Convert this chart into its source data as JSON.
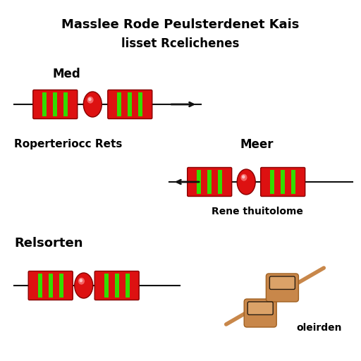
{
  "title_line1": "Masslee Rode Peulsterdenet Kais",
  "title_line2": "lisset Rcelichenes",
  "label_med": "Med",
  "label_roper": "Roperteriocc Rets",
  "label_meer": "Meer",
  "label_relsorten": "Relsorten",
  "label_rene": "Rene thuitolome",
  "label_oleirden": "oleirden",
  "bg_color": "#ffffff",
  "title_fontsize": 13,
  "label_fontsize": 11,
  "resistor_red": "#dd1111",
  "resistor_green": "#33dd00",
  "resistor_teal": "#008866",
  "resistor_tan": "#c8874a",
  "resistor_tan_light": "#e0aa70",
  "resistor_tan_dark": "#a06020",
  "wire_color": "#111111"
}
